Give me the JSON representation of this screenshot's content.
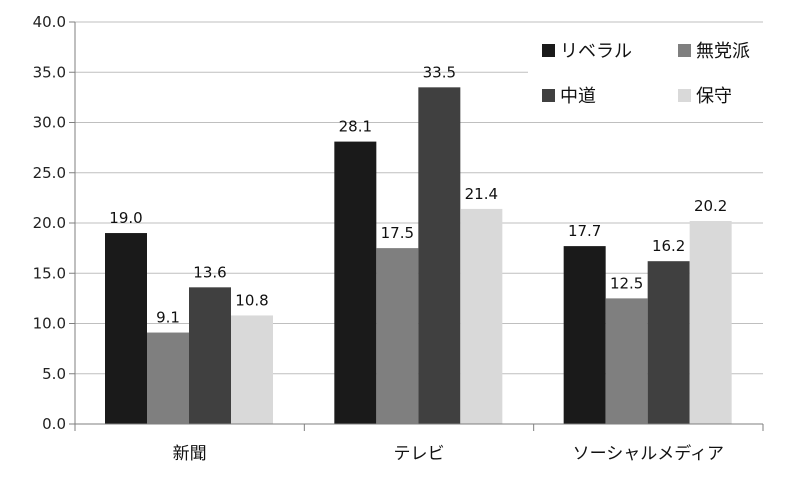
{
  "chart_data": {
    "type": "bar",
    "title": "",
    "xlabel": "",
    "ylabel": "",
    "categories": [
      "新聞",
      "テレビ",
      "ソーシャルメディア"
    ],
    "series": [
      {
        "name": "リベラル",
        "values": [
          19.0,
          28.1,
          17.7
        ],
        "value_labels": [
          "19.0",
          "28.1",
          "17.7"
        ],
        "color": "#1a1a1a"
      },
      {
        "name": "無党派",
        "values": [
          9.1,
          17.5,
          12.5
        ],
        "value_labels": [
          "9.1",
          "17.5",
          "12.5"
        ],
        "color": "#7f7f7f"
      },
      {
        "name": "中道",
        "values": [
          13.6,
          33.5,
          16.2
        ],
        "value_labels": [
          "13.6",
          "33.5",
          "16.2"
        ],
        "color": "#404040"
      },
      {
        "name": "保守",
        "values": [
          10.8,
          21.4,
          20.2
        ],
        "value_labels": [
          "10.8",
          "21.4",
          "20.2"
        ],
        "color": "#d9d9d9"
      }
    ],
    "ylim": [
      0,
      40
    ],
    "yticks": [
      "0.0",
      "5.0",
      "10.0",
      "15.0",
      "20.0",
      "25.0",
      "30.0",
      "35.0",
      "40.0"
    ],
    "grid": true,
    "legend_position": "top-right"
  }
}
